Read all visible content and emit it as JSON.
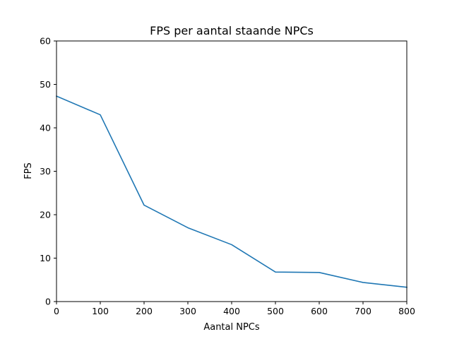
{
  "chart_data": {
    "type": "line",
    "title": "FPS per aantal staande NPCs",
    "xlabel": "Aantal NPCs",
    "ylabel": "FPS",
    "xlim": [
      0,
      800
    ],
    "ylim": [
      0,
      60
    ],
    "xticks": [
      0,
      100,
      200,
      300,
      400,
      500,
      600,
      700,
      800
    ],
    "yticks": [
      0,
      10,
      20,
      30,
      40,
      50,
      60
    ],
    "grid": false,
    "series": [
      {
        "color": "#1f77b4",
        "x": [
          0,
          100,
          200,
          300,
          400,
          500,
          600,
          700,
          800
        ],
        "y": [
          47.3,
          43.0,
          22.2,
          17.0,
          13.1,
          6.8,
          6.7,
          4.4,
          3.3
        ]
      }
    ]
  }
}
